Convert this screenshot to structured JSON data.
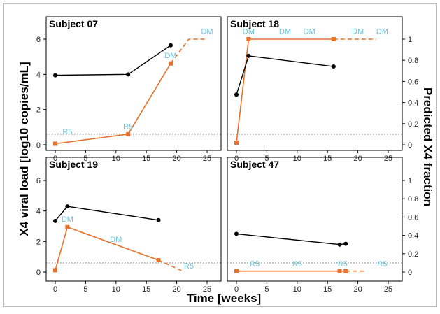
{
  "chart_data": {
    "type": "line",
    "xlabel": "Time [weeks]",
    "ylabel_left": "X4 viral load [log10 copies/mL]",
    "ylabel_right": "Predicted X4 fraction",
    "xlim": [
      -1,
      27
    ],
    "ylim_left": [
      -0.3,
      7.0
    ],
    "ylim_right": [
      -0.05,
      1.17
    ],
    "xticks": [
      "0",
      "5",
      "10",
      "15",
      "20",
      "25"
    ],
    "yticks_left": [
      "0",
      "2",
      "4",
      "6"
    ],
    "yticks_right": [
      "0",
      "0.2",
      "0.4",
      "0.6",
      "0.8",
      "1"
    ],
    "detection_limit_log10": 0.6,
    "colors": {
      "viral_load": "#000000",
      "x4_fraction": "#e8702a",
      "annotation": "#6cc3d6",
      "limit": "#555555"
    },
    "panels": [
      {
        "title": "Subject 07",
        "viral_load": {
          "x": [
            0,
            12,
            19
          ],
          "y": [
            3.95,
            4.0,
            5.65
          ]
        },
        "x4_fraction": {
          "x": [
            0,
            12,
            19
          ],
          "y": [
            0.01,
            0.1,
            0.77
          ]
        },
        "x4_fraction_dashed": {
          "x": [
            19,
            22,
            25
          ],
          "y": [
            0.77,
            1.0,
            1.0
          ]
        },
        "annotations": [
          {
            "text": "R5",
            "x": 2,
            "y": 0.1
          },
          {
            "text": "R5",
            "x": 12,
            "y": 0.15
          },
          {
            "text": "DM",
            "x": 19,
            "y": 0.82
          },
          {
            "text": "DM",
            "x": 25,
            "y": 1.05
          }
        ]
      },
      {
        "title": "Subject 18",
        "viral_load": {
          "x": [
            0,
            2,
            16
          ],
          "y": [
            2.85,
            5.05,
            4.45
          ]
        },
        "x4_fraction": {
          "x": [
            0,
            2,
            16
          ],
          "y": [
            0.02,
            1.0,
            1.0
          ]
        },
        "x4_fraction_dashed": {
          "x": [
            16,
            23
          ],
          "y": [
            1.0,
            1.0
          ]
        },
        "annotations": [
          {
            "text": "DM",
            "x": 2,
            "y": 1.05
          },
          {
            "text": "DM",
            "x": 8,
            "y": 1.05
          },
          {
            "text": "DM",
            "x": 12,
            "y": 1.05
          },
          {
            "text": "DM",
            "x": 20,
            "y": 1.05
          },
          {
            "text": "DM",
            "x": 24,
            "y": 1.05
          }
        ]
      },
      {
        "title": "Subject 19",
        "viral_load": {
          "x": [
            0,
            2,
            17
          ],
          "y": [
            3.35,
            4.3,
            3.4
          ]
        },
        "x4_fraction": {
          "x": [
            0,
            2,
            17
          ],
          "y": [
            0.02,
            0.49,
            0.13
          ]
        },
        "x4_fraction_dashed": {
          "x": [
            17,
            21
          ],
          "y": [
            0.13,
            0.01
          ]
        },
        "annotations": [
          {
            "text": "DM",
            "x": 2,
            "y": 0.55
          },
          {
            "text": "DM",
            "x": 10,
            "y": 0.33
          },
          {
            "text": "R5",
            "x": 22,
            "y": 0.04
          }
        ]
      },
      {
        "title": "Subject 47",
        "viral_load": {
          "x": [
            0,
            17,
            18
          ],
          "y": [
            2.5,
            1.8,
            1.85
          ]
        },
        "x4_fraction": {
          "x": [
            0,
            17,
            18
          ],
          "y": [
            0.01,
            0.01,
            0.01
          ]
        },
        "x4_fraction_dashed": {
          "x": [
            18,
            21
          ],
          "y": [
            0.01,
            0.01
          ]
        },
        "annotations": [
          {
            "text": "R5",
            "x": 3,
            "y": 0.06
          },
          {
            "text": "R5",
            "x": 10,
            "y": 0.06
          },
          {
            "text": "R5",
            "x": 17.5,
            "y": 0.06
          },
          {
            "text": "R5",
            "x": 24,
            "y": 0.06
          }
        ]
      }
    ]
  }
}
